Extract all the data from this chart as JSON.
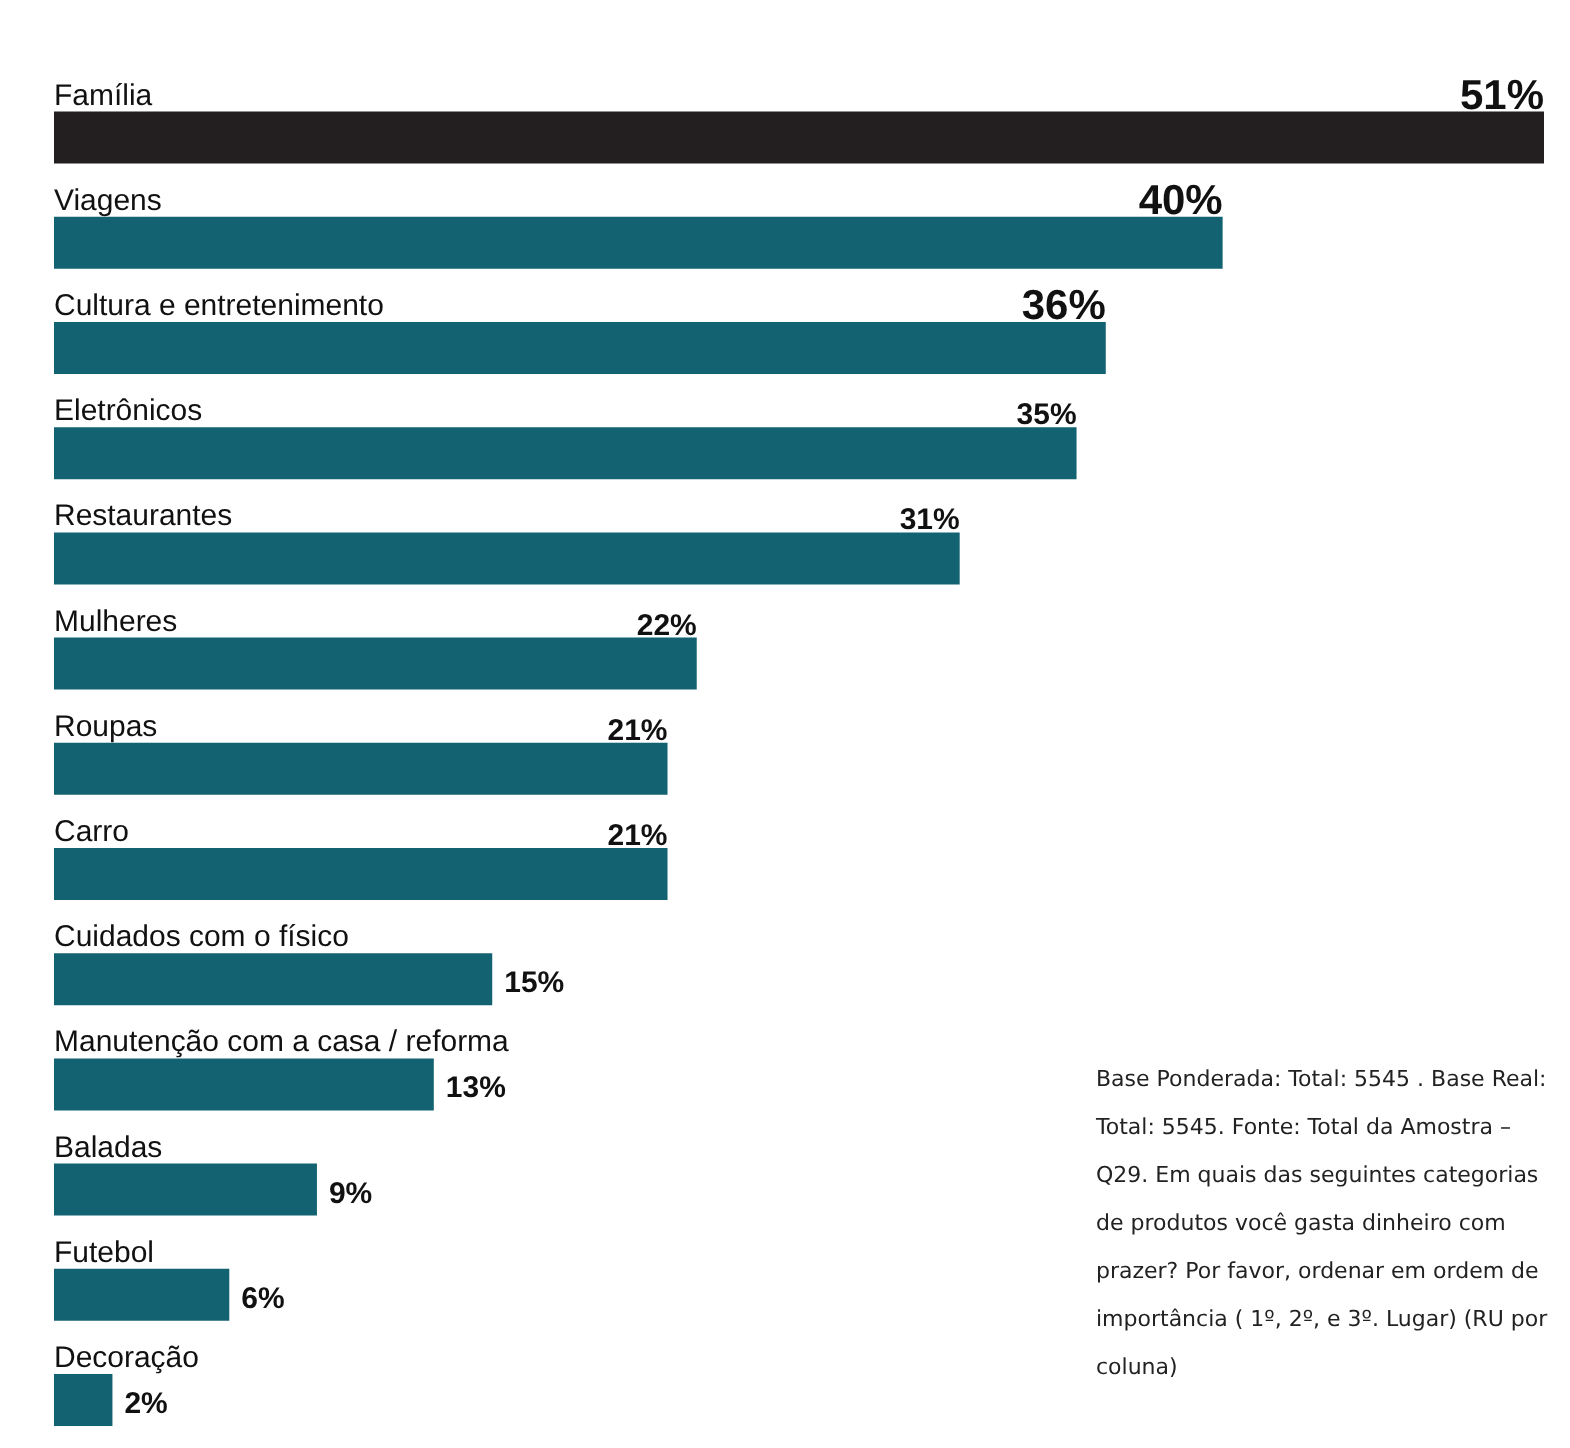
{
  "chart_data": {
    "type": "bar",
    "orientation": "horizontal",
    "categories": [
      "Família",
      "Viagens",
      "Cultura e entretenimento",
      "Eletrônicos",
      "Restaurantes",
      "Mulheres",
      "Roupas",
      "Carro",
      "Cuidados com o físico",
      "Manutenção com a casa / reforma",
      "Baladas",
      "Futebol",
      "Decoração"
    ],
    "values": [
      51,
      40,
      36,
      35,
      31,
      22,
      21,
      21,
      15,
      13,
      9,
      6,
      2
    ],
    "colors": [
      "#231f20",
      "#136272",
      "#136272",
      "#136272",
      "#136272",
      "#136272",
      "#136272",
      "#136272",
      "#136272",
      "#136272",
      "#136272",
      "#136272",
      "#136272"
    ],
    "xlim": [
      0,
      51
    ],
    "value_labels": [
      "51%",
      "40%",
      "36%",
      "35%",
      "31%",
      "22%",
      "21%",
      "21%",
      "15%",
      "13%",
      "9%",
      "6%",
      "2%"
    ],
    "annotations": [
      "Base Ponderada: Total: 5545 . Base Real: Total: 5545. Fonte: Total da Amostra – Q29. Em quais das seguintes categorias de produtos você gasta dinheiro com prazer? Por favor, ordenar em ordem de importância ( 1º, 2º, e 3º. Lugar)  (RU por coluna)"
    ]
  }
}
